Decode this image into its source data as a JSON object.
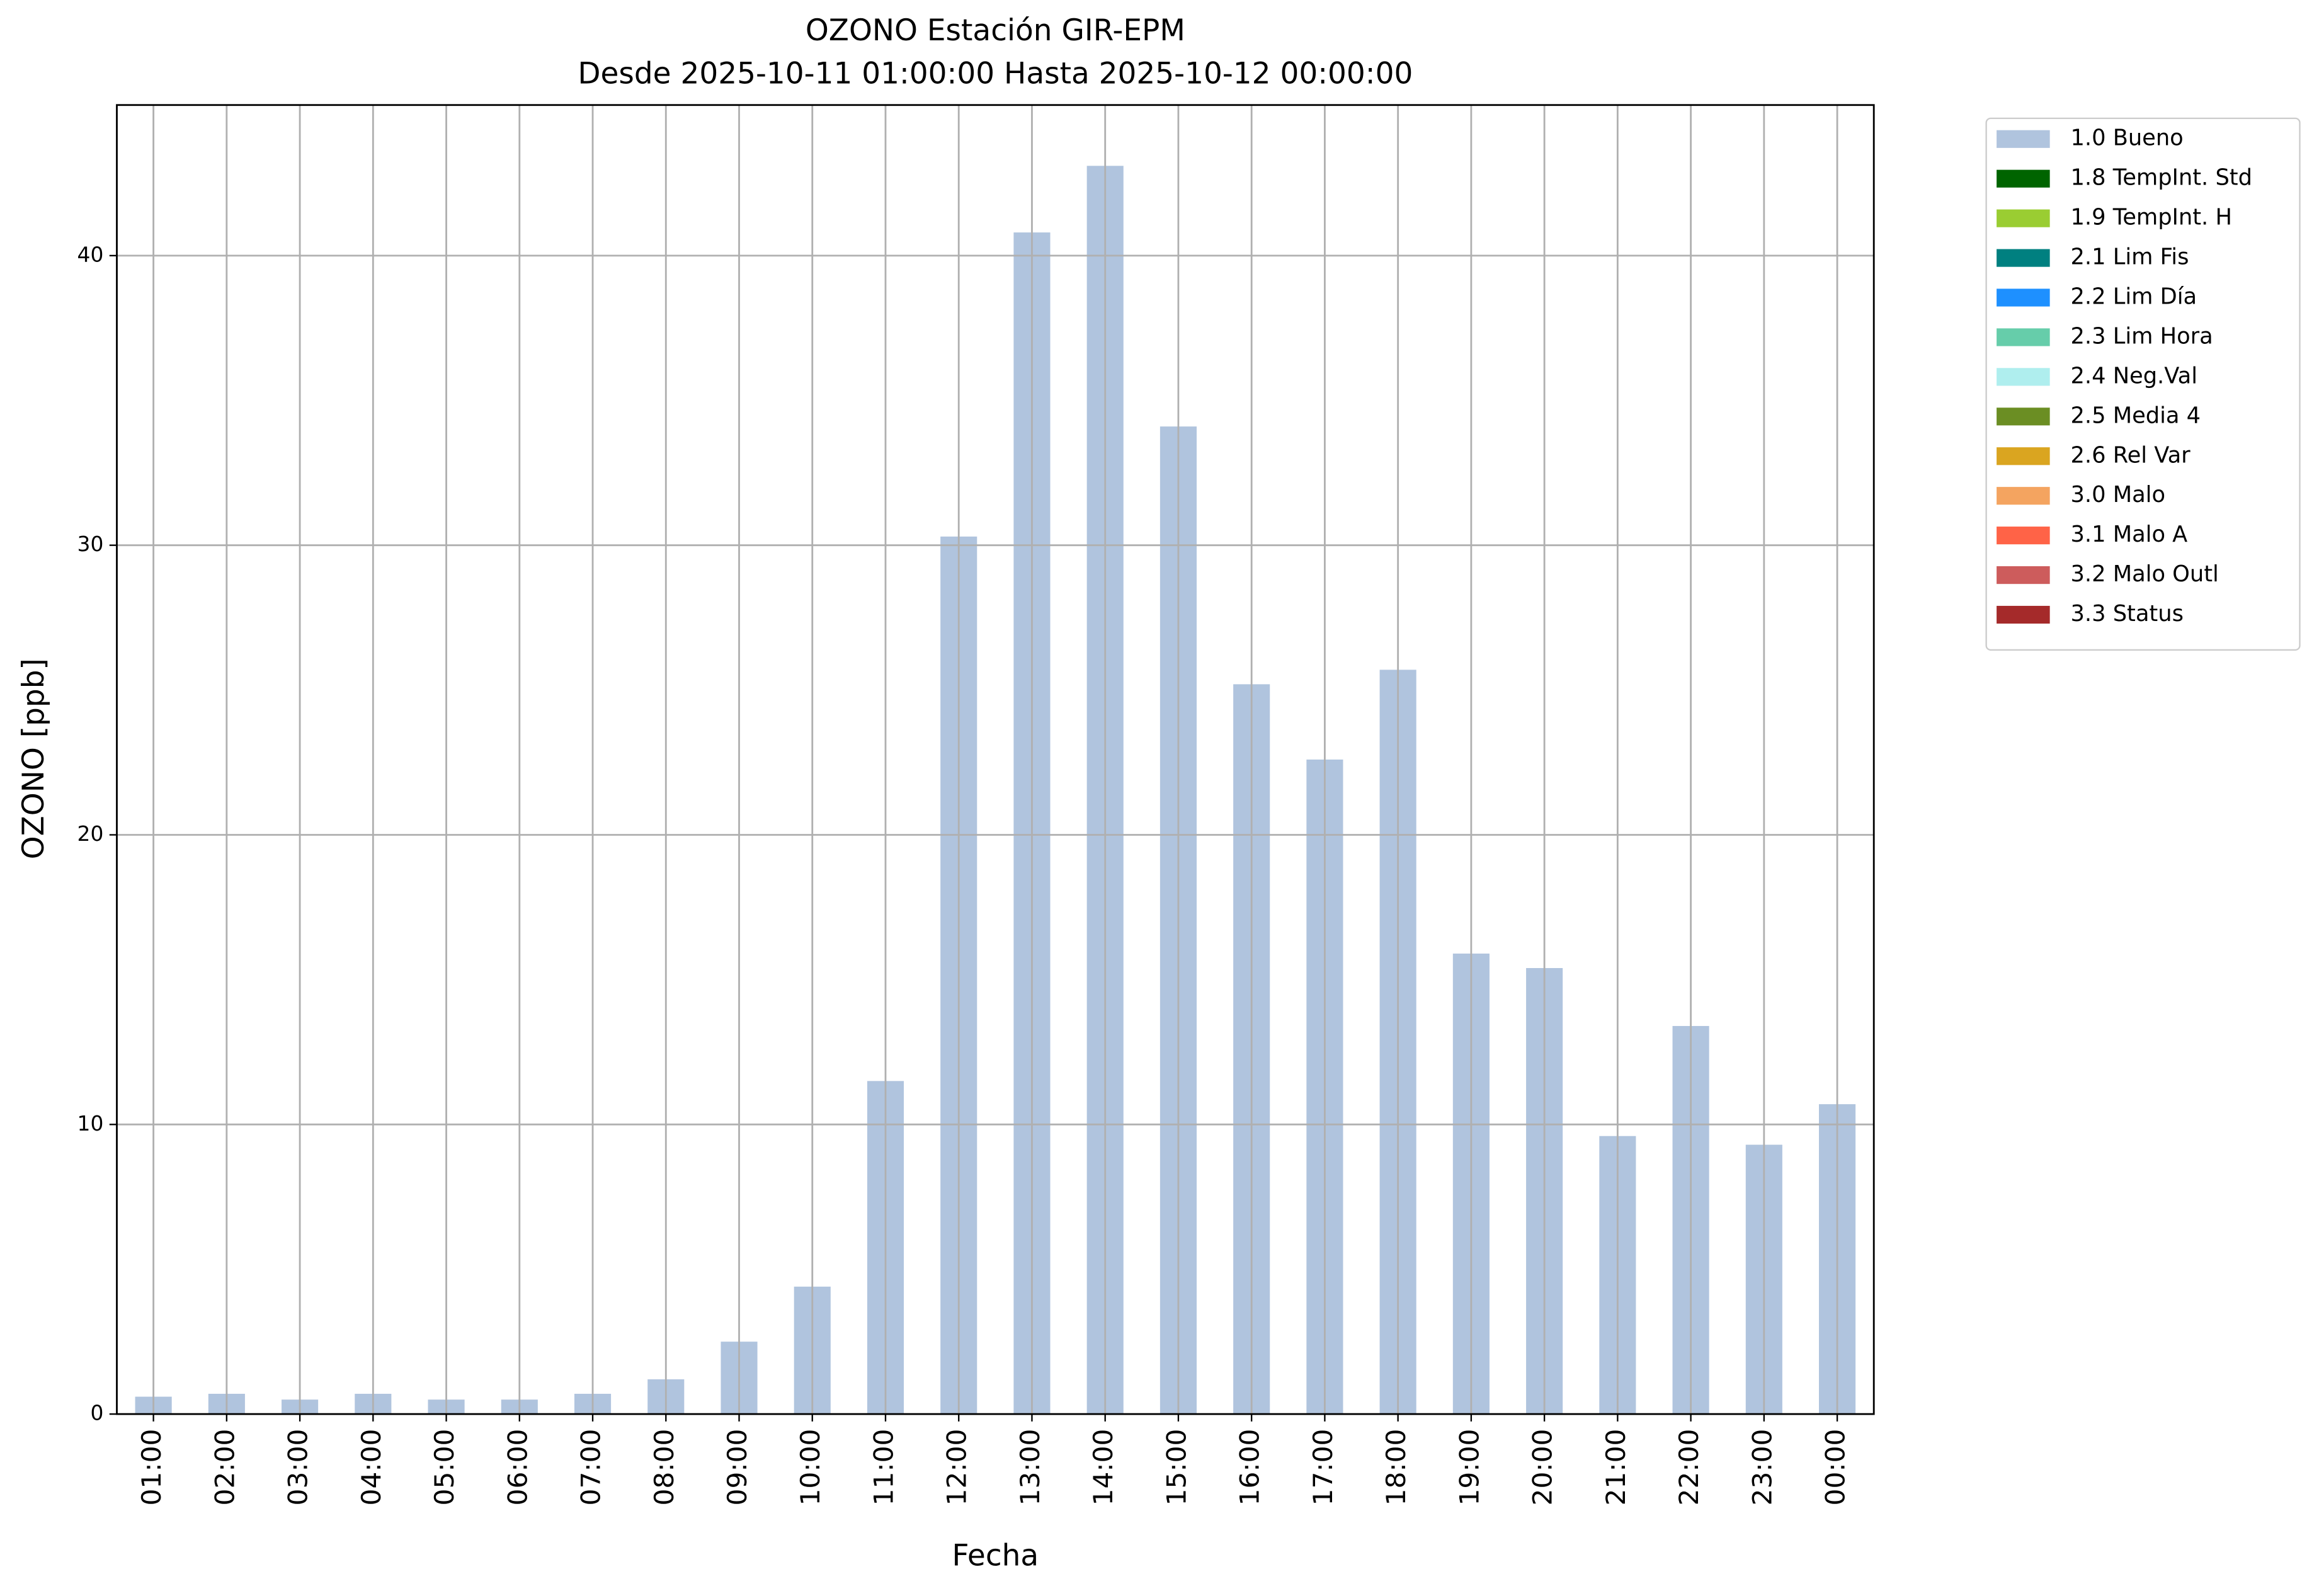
{
  "chart_data": {
    "type": "bar",
    "title": "OZONO Estación GIR-EPM",
    "subtitle": "Desde 2025-10-11 01:00:00 Hasta 2025-10-12 00:00:00",
    "x_label": "Fecha",
    "y_label": "OZONO [ppb]",
    "categories": [
      "01:00",
      "02:00",
      "03:00",
      "04:00",
      "05:00",
      "06:00",
      "07:00",
      "08:00",
      "09:00",
      "10:00",
      "11:00",
      "12:00",
      "13:00",
      "14:00",
      "15:00",
      "16:00",
      "17:00",
      "18:00",
      "19:00",
      "20:00",
      "21:00",
      "22:00",
      "23:00",
      "00:00"
    ],
    "series": [
      {
        "name": "1.0 Bueno",
        "color": "#b0c4de",
        "values": [
          0.6,
          0.7,
          0.5,
          0.7,
          0.5,
          0.5,
          0.7,
          1.2,
          2.5,
          4.4,
          11.5,
          30.3,
          40.8,
          43.1,
          34.1,
          25.2,
          22.6,
          25.7,
          15.9,
          15.4,
          9.6,
          13.4,
          9.3,
          10.7
        ]
      },
      {
        "name": "1.8 TempInt. Std",
        "color": "#006400",
        "values": [
          0,
          0,
          0,
          0,
          0,
          0,
          0,
          0,
          0,
          0,
          0,
          0,
          0,
          0,
          0,
          0,
          0,
          0,
          0,
          0,
          0,
          0,
          0,
          0
        ]
      },
      {
        "name": "1.9 TempInt. H",
        "color": "#9acd32",
        "values": [
          0,
          0,
          0,
          0,
          0,
          0,
          0,
          0,
          0,
          0,
          0,
          0,
          0,
          0,
          0,
          0,
          0,
          0,
          0,
          0,
          0,
          0,
          0,
          0
        ]
      },
      {
        "name": "2.1 Lim Fis",
        "color": "#008080",
        "values": [
          0,
          0,
          0,
          0,
          0,
          0,
          0,
          0,
          0,
          0,
          0,
          0,
          0,
          0,
          0,
          0,
          0,
          0,
          0,
          0,
          0,
          0,
          0,
          0
        ]
      },
      {
        "name": "2.2 Lim Día",
        "color": "#1e90ff",
        "values": [
          0,
          0,
          0,
          0,
          0,
          0,
          0,
          0,
          0,
          0,
          0,
          0,
          0,
          0,
          0,
          0,
          0,
          0,
          0,
          0,
          0,
          0,
          0,
          0
        ]
      },
      {
        "name": "2.3 Lim Hora",
        "color": "#66cdaa",
        "values": [
          0,
          0,
          0,
          0,
          0,
          0,
          0,
          0,
          0,
          0,
          0,
          0,
          0,
          0,
          0,
          0,
          0,
          0,
          0,
          0,
          0,
          0,
          0,
          0
        ]
      },
      {
        "name": "2.4 Neg.Val",
        "color": "#afeeee",
        "values": [
          0,
          0,
          0,
          0,
          0,
          0,
          0,
          0,
          0,
          0,
          0,
          0,
          0,
          0,
          0,
          0,
          0,
          0,
          0,
          0,
          0,
          0,
          0,
          0
        ]
      },
      {
        "name": "2.5 Media 4",
        "color": "#6b8e23",
        "values": [
          0,
          0,
          0,
          0,
          0,
          0,
          0,
          0,
          0,
          0,
          0,
          0,
          0,
          0,
          0,
          0,
          0,
          0,
          0,
          0,
          0,
          0,
          0,
          0
        ]
      },
      {
        "name": "2.6 Rel Var",
        "color": "#daa520",
        "values": [
          0,
          0,
          0,
          0,
          0,
          0,
          0,
          0,
          0,
          0,
          0,
          0,
          0,
          0,
          0,
          0,
          0,
          0,
          0,
          0,
          0,
          0,
          0,
          0
        ]
      },
      {
        "name": "3.0 Malo",
        "color": "#f4a460",
        "values": [
          0,
          0,
          0,
          0,
          0,
          0,
          0,
          0,
          0,
          0,
          0,
          0,
          0,
          0,
          0,
          0,
          0,
          0,
          0,
          0,
          0,
          0,
          0,
          0
        ]
      },
      {
        "name": "3.1 Malo A",
        "color": "#ff6347",
        "values": [
          0,
          0,
          0,
          0,
          0,
          0,
          0,
          0,
          0,
          0,
          0,
          0,
          0,
          0,
          0,
          0,
          0,
          0,
          0,
          0,
          0,
          0,
          0,
          0
        ]
      },
      {
        "name": "3.2 Malo Outl",
        "color": "#cd5c5c",
        "values": [
          0,
          0,
          0,
          0,
          0,
          0,
          0,
          0,
          0,
          0,
          0,
          0,
          0,
          0,
          0,
          0,
          0,
          0,
          0,
          0,
          0,
          0,
          0,
          0
        ]
      },
      {
        "name": "3.3 Status",
        "color": "#a52a2a",
        "values": [
          0,
          0,
          0,
          0,
          0,
          0,
          0,
          0,
          0,
          0,
          0,
          0,
          0,
          0,
          0,
          0,
          0,
          0,
          0,
          0,
          0,
          0,
          0,
          0
        ]
      }
    ],
    "ylim": [
      0,
      45.2
    ],
    "yticks": [
      0,
      10,
      20,
      30,
      40
    ],
    "grid": true,
    "legend": "outside-upper-right"
  }
}
